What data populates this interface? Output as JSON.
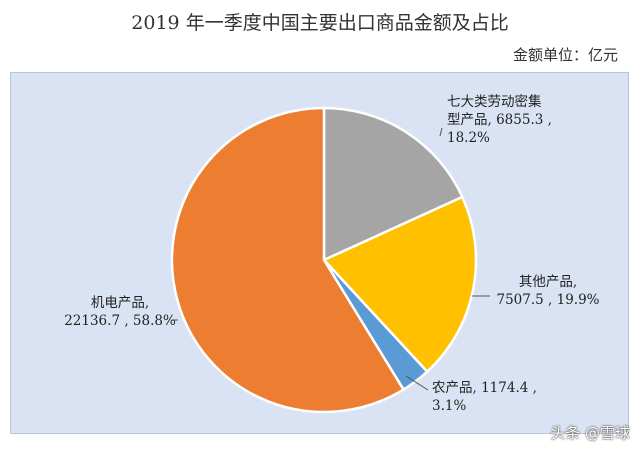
{
  "chart_data": {
    "type": "pie",
    "title": "2019 年一季度中国主要出口商品金额及占比",
    "unit_label": "金额单位：亿元",
    "start_angle_deg": 0,
    "slices": [
      {
        "name": "七大类劳动密集型产品",
        "value": 6855.3,
        "percent": "18.2%",
        "color": "#a5a5a5",
        "label_lines": [
          "七大类劳动密集",
          "型产品, 6855.3 ,",
          "18.2%"
        ]
      },
      {
        "name": "其他产品",
        "value": 7507.5,
        "percent": "19.9%",
        "color": "#ffc000",
        "label_lines": [
          "其他产品,",
          "7507.5 , 19.9%"
        ]
      },
      {
        "name": "农产品",
        "value": 1174.4,
        "percent": "3.1%",
        "color": "#5b9bd5",
        "label_lines": [
          "农产品, 1174.4 ,",
          "3.1%"
        ]
      },
      {
        "name": "机电产品",
        "value": 22136.7,
        "percent": "58.8%",
        "color": "#ed7d31",
        "label_lines": [
          "机电产品,",
          "22136.7 , 58.8%"
        ]
      }
    ]
  },
  "watermark": "头条 @雪球"
}
